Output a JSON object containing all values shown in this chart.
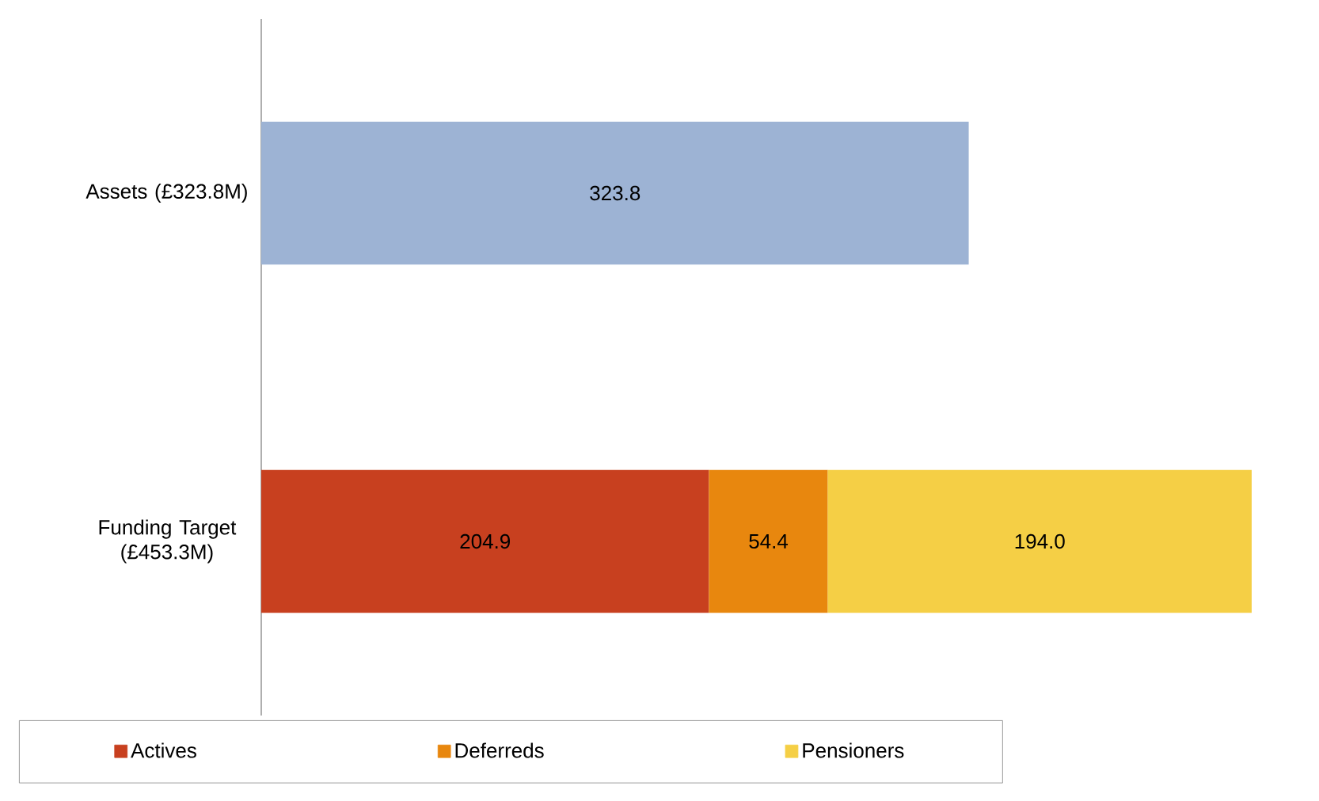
{
  "chart_data": {
    "type": "bar",
    "orientation": "horizontal",
    "stacked": true,
    "legend": "bottom",
    "categories": [
      "Assets (£323.8M)",
      "Funding Target (£453.3M)"
    ],
    "series": [
      {
        "color": "#9db3d4",
        "values": [
          323.8,
          null
        ],
        "value_labels": [
          "323.8",
          null
        ]
      },
      {
        "name": "Actives",
        "color": "#c8401f",
        "values": [
          null,
          204.9
        ],
        "value_labels": [
          null,
          "204.9"
        ]
      },
      {
        "name": "Deferreds",
        "color": "#e8870e",
        "values": [
          null,
          54.4
        ],
        "value_labels": [
          null,
          "54.4"
        ]
      },
      {
        "name": "Pensioners",
        "color": "#f5cf45",
        "values": [
          null,
          194.0
        ],
        "value_labels": [
          null,
          "194.0"
        ]
      }
    ]
  }
}
